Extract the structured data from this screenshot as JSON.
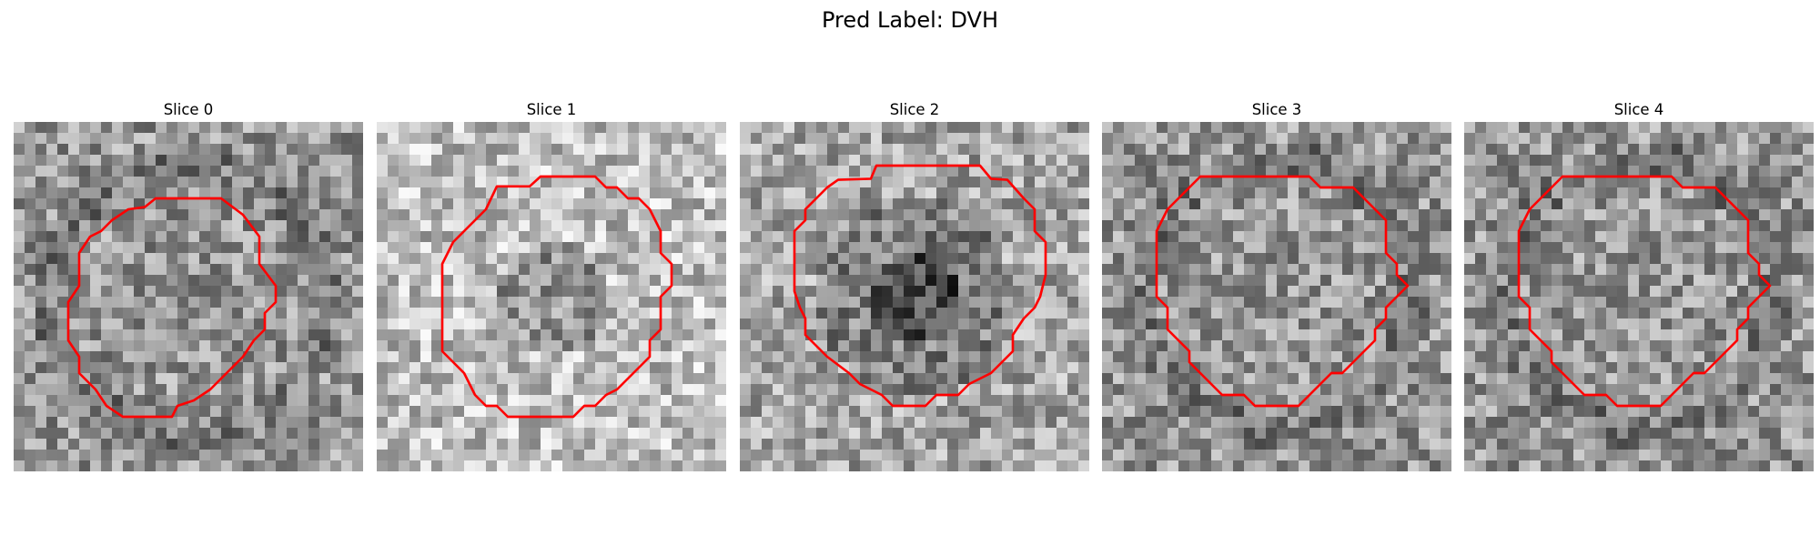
{
  "figure": {
    "title": "Pred Label: DVH"
  },
  "panels": [
    {
      "title": "Slice 0",
      "seed": 11,
      "contour": "red",
      "mode": "plain"
    },
    {
      "title": "Slice 1",
      "seed": 23,
      "contour": "red",
      "mode": "light"
    },
    {
      "title": "Slice 2",
      "seed": 37,
      "contour": "red",
      "mode": "dark-core"
    },
    {
      "title": "Slice 3",
      "seed": 53,
      "contour": "red",
      "mode": "plain"
    },
    {
      "title": "Slice 4",
      "seed": 53,
      "contour": "red",
      "mode": "plain"
    }
  ]
}
